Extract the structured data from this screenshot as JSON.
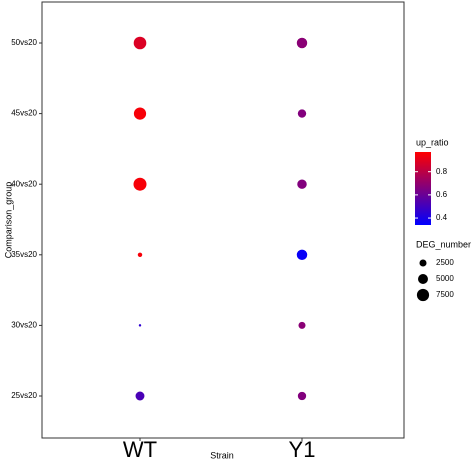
{
  "chart_data": {
    "type": "bubble",
    "xlabel": "Strain",
    "ylabel": "Comparison_group",
    "y_categories": [
      "25vs20",
      "30vs20",
      "35vs20",
      "40vs20",
      "45vs20",
      "50vs20"
    ],
    "series": [
      {
        "name": "WT",
        "up_ratio": [
          0.52,
          0.45,
          0.95,
          0.95,
          0.95,
          0.88
        ],
        "DEG_number": [
          4000,
          300,
          1000,
          8500,
          7500,
          8000
        ]
      },
      {
        "name": "Y1",
        "up_ratio": [
          0.66,
          0.68,
          0.36,
          0.66,
          0.66,
          0.68
        ],
        "DEG_number": [
          3500,
          2500,
          5500,
          4500,
          3500,
          5500
        ]
      }
    ],
    "color_label": "up_ratio",
    "colorlim": [
      0.34,
      0.97
    ],
    "colorticks": [
      0.4,
      0.6,
      0.8
    ],
    "low_color": "#0000ff",
    "high_color": "#ff0000",
    "size_label": "DEG_number",
    "size_legend": [
      2500,
      5000,
      7500
    ]
  }
}
